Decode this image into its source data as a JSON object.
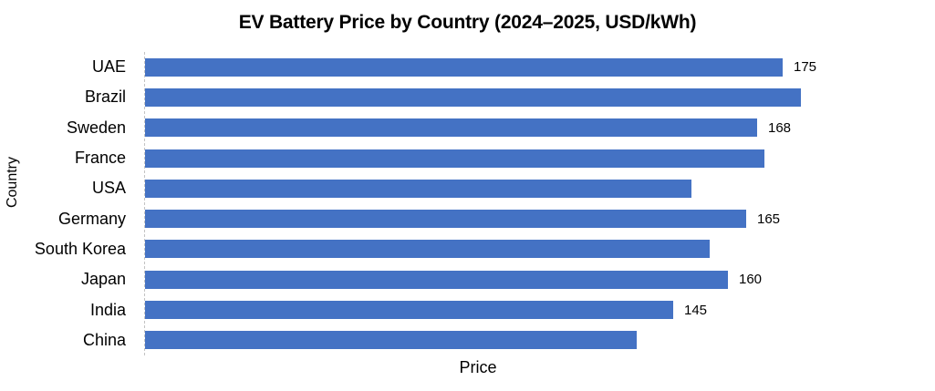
{
  "chart_data": {
    "type": "bar",
    "orientation": "horizontal",
    "title": "EV Battery Price by Country (2024–2025, USD/kWh)",
    "xlabel": "Price",
    "ylabel": "Country",
    "categories": [
      "UAE",
      "Brazil",
      "Sweden",
      "France",
      "USA",
      "Germany",
      "South Korea",
      "Japan",
      "India",
      "China"
    ],
    "values": [
      175,
      180,
      168,
      170,
      150,
      165,
      155,
      160,
      145,
      135
    ],
    "data_labels": [
      175,
      null,
      168,
      null,
      null,
      165,
      null,
      160,
      145,
      null
    ],
    "xlim": [
      0,
      180
    ],
    "grid": false,
    "legend": "none",
    "bar_color": "#4472C4",
    "axis_line_color": "#c3c3c3",
    "text_color": "#000000"
  }
}
